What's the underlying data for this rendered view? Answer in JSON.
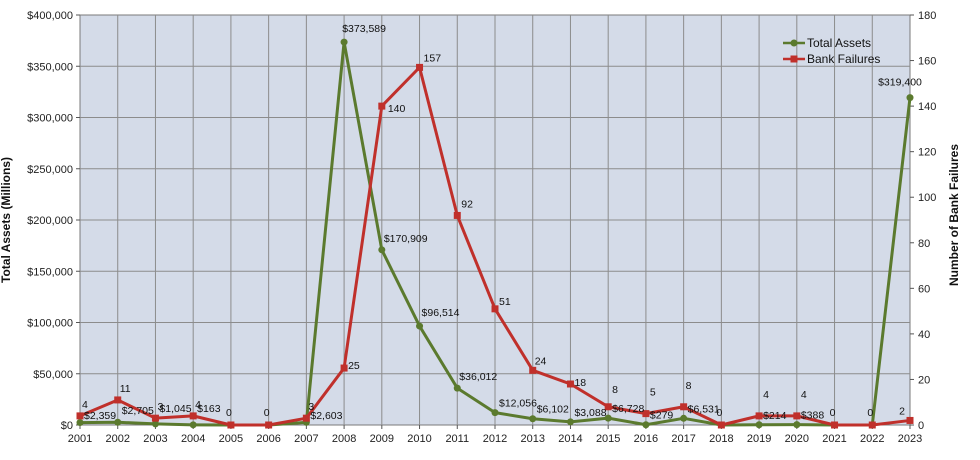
{
  "chart_data": {
    "type": "line",
    "title": "",
    "x": [
      "2001",
      "2002",
      "2003",
      "2004",
      "2005",
      "2006",
      "2007",
      "2008",
      "2009",
      "2010",
      "2011",
      "2012",
      "2013",
      "2014",
      "2015",
      "2016",
      "2017",
      "2018",
      "2019",
      "2020",
      "2021",
      "2022",
      "2023"
    ],
    "y_left": {
      "label": "Total Assets (Millions)",
      "range": [
        0,
        400000
      ],
      "ticks": [
        "$0",
        "$50,000",
        "$100,000",
        "$150,000",
        "$200,000",
        "$250,000",
        "$300,000",
        "$350,000",
        "$400,000"
      ],
      "tick_values": [
        0,
        50000,
        100000,
        150000,
        200000,
        250000,
        300000,
        350000,
        400000
      ]
    },
    "y_right": {
      "label": "Number of Bank Failures",
      "range": [
        0,
        180
      ],
      "ticks": [
        "0",
        "20",
        "40",
        "60",
        "80",
        "100",
        "120",
        "140",
        "160",
        "180"
      ],
      "tick_values": [
        0,
        20,
        40,
        60,
        80,
        100,
        120,
        140,
        160,
        180
      ]
    },
    "grid": true,
    "legend_position": "top-right",
    "series": [
      {
        "name": "Total Assets",
        "axis": "left",
        "color": "#5b7a2e",
        "marker": "circle",
        "values": [
          2359,
          2705,
          1045,
          163,
          0,
          0,
          2603,
          373589,
          170909,
          96514,
          36012,
          12056,
          6102,
          3088,
          6728,
          279,
          6531,
          0,
          214,
          388,
          0,
          0,
          319400
        ],
        "labels": [
          "$2,359",
          "$2,705",
          "$1,045",
          "$163",
          "",
          "",
          "$2,603",
          "$373,589",
          "$170,909",
          "$96,514",
          "$36,012",
          "$12,056",
          "$6,102",
          "$3,088",
          "$6,728",
          "$279",
          "$6,531",
          "",
          "$214",
          "$388",
          "",
          "",
          "$319,400"
        ]
      },
      {
        "name": "Bank Failures",
        "axis": "right",
        "color": "#c0302b",
        "marker": "square",
        "values": [
          4,
          11,
          3,
          4,
          0,
          0,
          3,
          25,
          140,
          157,
          92,
          51,
          24,
          18,
          8,
          5,
          8,
          0,
          4,
          4,
          0,
          0,
          2
        ],
        "labels": [
          "4",
          "11",
          "3",
          "4",
          "0",
          "0",
          "3",
          "25",
          "140",
          "157",
          "92",
          "51",
          "24",
          "18",
          "8",
          "5",
          "8",
          "0",
          "4",
          "4",
          "0",
          "0",
          "2"
        ]
      }
    ]
  }
}
